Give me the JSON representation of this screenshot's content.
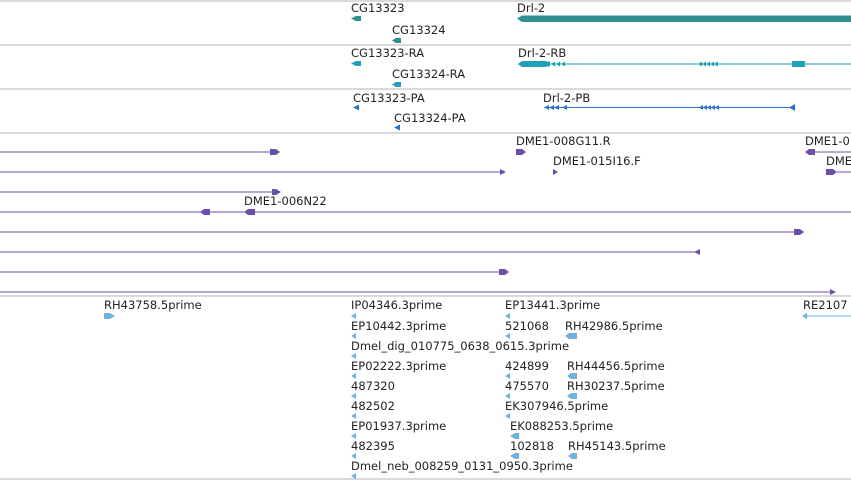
{
  "colors": {
    "separator": "#b4b4b4",
    "gene": "#2f8f8f",
    "gene_transcript": "#1f9fb8",
    "cdna_transcript": "#2e6fd0",
    "clone": "#6c4fa8",
    "est": "#6eb2de"
  },
  "genes": {
    "cg13323": "CG13323",
    "cg13324": "CG13324",
    "drl2": "Drl-2"
  },
  "transcripts": {
    "cg13323_ra": "CG13323-RA",
    "cg13324_ra": "CG13324-RA",
    "drl2_rb": "Drl-2-RB"
  },
  "cdnas": {
    "cg13323_pa": "CG13323-PA",
    "cg13324_pa": "CG13324-PA",
    "drl2_pb": "Drl-2-PB"
  },
  "clones": {
    "dme1_008g11": "DME1-008G11.R",
    "dme1_015i16": "DME1-015I16.F",
    "dme1_006n22": "DME1-006N22",
    "dme1_clip_1": "DME1-0",
    "dme1_clip_2": "DME"
  },
  "ests": {
    "rh43758": "RH43758.5prime",
    "ip04346": "IP04346.3prime",
    "ep13441": "EP13441.3prime",
    "re2107": "RE2107",
    "ep10442": "EP10442.3prime",
    "e521068": "521068",
    "rh42986": "RH42986.5prime",
    "dmel_dig": "Dmel_dig_010775_0638_0615.3prime",
    "ep02222": "EP02222.3prime",
    "e424899": "424899",
    "rh44456": "RH44456.5prime",
    "e487320": "487320",
    "e475570": "475570",
    "rh30237": "RH30237.5prime",
    "e482502": "482502",
    "ek307946": "EK307946.5prime",
    "ep01937": "EP01937.3prime",
    "ek088253": "EK088253.5prime",
    "e482395": "482395",
    "e102818": "102818",
    "rh45143": "RH45143.5prime",
    "dmel_neb": "Dmel_neb_008259_0131_0950.3prime"
  }
}
